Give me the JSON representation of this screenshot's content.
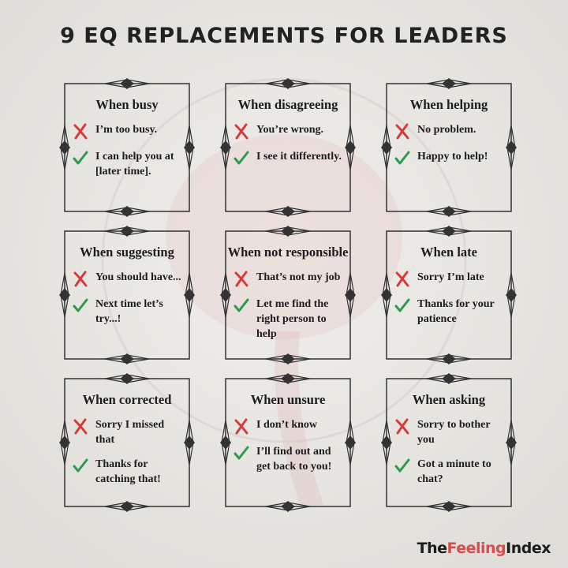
{
  "title": "9 EQ REPLACEMENTS FOR LEADERS",
  "cards": [
    {
      "heading": "When busy",
      "bad": "I’m too busy.",
      "good": "I can help you at [later time]."
    },
    {
      "heading": "When disagreeing",
      "bad": "You’re wrong.",
      "good": "I see it differently."
    },
    {
      "heading": "When helping",
      "bad": "No problem.",
      "good": "Happy to help!"
    },
    {
      "heading": "When suggesting",
      "bad": "You should have...",
      "good": "Next time let’s try...!"
    },
    {
      "heading": "When not responsible",
      "bad": "That’s not my job",
      "good": "Let me find the right person to help"
    },
    {
      "heading": "When late",
      "bad": "Sorry I’m late",
      "good": "Thanks for your patience"
    },
    {
      "heading": "When corrected",
      "bad": "Sorry I missed that",
      "good": "Thanks for catching that!"
    },
    {
      "heading": "When unsure",
      "bad": "I don’t know",
      "good": "I’ll find out and get back to you!"
    },
    {
      "heading": "When asking",
      "bad": "Sorry to bother you",
      "good": "Got a minute to chat?"
    }
  ],
  "brand": [
    "The",
    "Feeling",
    "Index"
  ]
}
